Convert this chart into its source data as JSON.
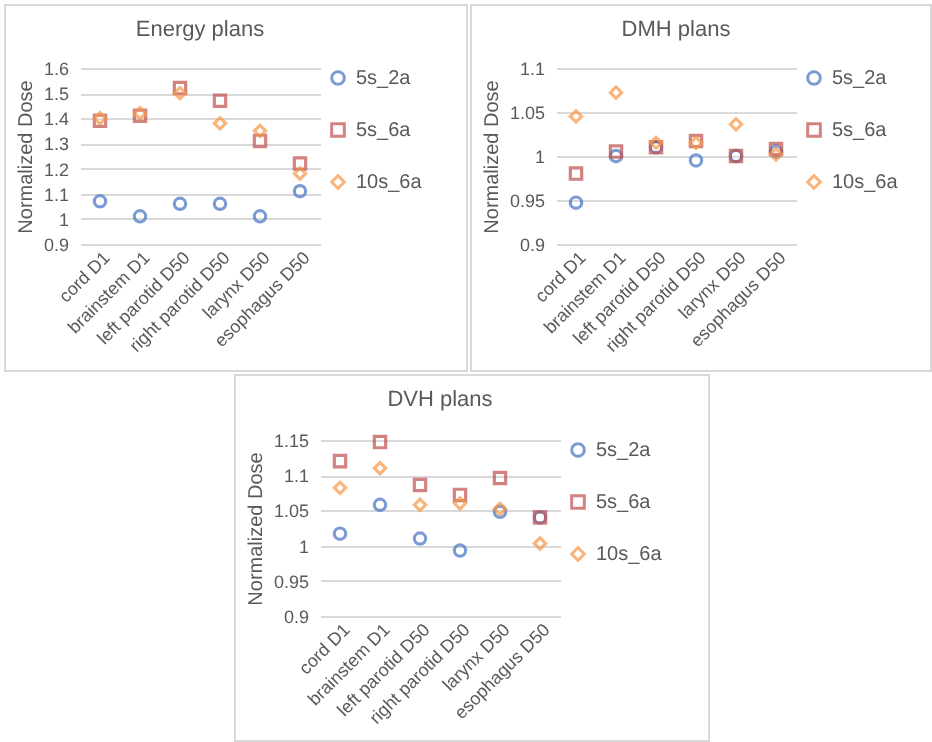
{
  "chart_data": [
    {
      "type": "scatter",
      "title": "Energy plans",
      "ylabel": "Normalized Dose",
      "categories": [
        "cord D1",
        "brainstem D1",
        "left parotid D50",
        "right parotid D50",
        "larynx D50",
        "esophagus D50"
      ],
      "series": [
        {
          "name": "5s_2a",
          "color": "#4472c4",
          "marker": "circle",
          "values": [
            1.07,
            1.01,
            1.06,
            1.06,
            1.01,
            1.11
          ]
        },
        {
          "name": "5s_6a",
          "color": "#c0504d",
          "marker": "square",
          "values": [
            1.39,
            1.41,
            1.52,
            1.47,
            1.31,
            1.22
          ]
        },
        {
          "name": "10s_6a",
          "color": "#f79646",
          "marker": "diamond",
          "values": [
            1.4,
            1.42,
            1.5,
            1.38,
            1.35,
            1.18
          ]
        }
      ],
      "ylim": [
        0.9,
        1.6
      ],
      "yticks": [
        0.9,
        1,
        1.1,
        1.2,
        1.3,
        1.4,
        1.5,
        1.6
      ],
      "grid": "y",
      "legend": "right"
    },
    {
      "type": "scatter",
      "title": "DMH plans",
      "ylabel": "Normalized Dose",
      "categories": [
        "cord D1",
        "brainstem D1",
        "left parotid D50",
        "right parotid D50",
        "larynx D50",
        "esophagus D50"
      ],
      "series": [
        {
          "name": "5s_2a",
          "color": "#4472c4",
          "marker": "circle",
          "values": [
            0.947,
            1.0,
            1.01,
            0.995,
            1.0,
            1.005
          ]
        },
        {
          "name": "5s_6a",
          "color": "#c0504d",
          "marker": "square",
          "values": [
            0.98,
            1.005,
            1.01,
            1.017,
            1.0,
            1.008
          ]
        },
        {
          "name": "10s_6a",
          "color": "#f79646",
          "marker": "diamond",
          "values": [
            1.045,
            1.072,
            1.015,
            1.015,
            1.036,
            1.002
          ]
        }
      ],
      "ylim": [
        0.9,
        1.1
      ],
      "yticks": [
        0.9,
        0.95,
        1,
        1.05,
        1.1
      ],
      "grid": "y",
      "legend": "right"
    },
    {
      "type": "scatter",
      "title": "DVH plans",
      "ylabel": "Normalized Dose",
      "categories": [
        "cord D1",
        "brainstem D1",
        "left parotid D50",
        "right parotid D50",
        "larynx D50",
        "esophagus D50"
      ],
      "series": [
        {
          "name": "5s_2a",
          "color": "#4472c4",
          "marker": "circle",
          "values": [
            1.017,
            1.058,
            1.01,
            0.993,
            1.048,
            1.04
          ]
        },
        {
          "name": "5s_6a",
          "color": "#c0504d",
          "marker": "square",
          "values": [
            1.12,
            1.147,
            1.086,
            1.072,
            1.096,
            1.04
          ]
        },
        {
          "name": "10s_6a",
          "color": "#f79646",
          "marker": "diamond",
          "values": [
            1.082,
            1.11,
            1.058,
            1.06,
            1.052,
            1.003
          ]
        }
      ],
      "ylim": [
        0.9,
        1.15
      ],
      "yticks": [
        0.9,
        0.95,
        1,
        1.05,
        1.1,
        1.15
      ],
      "grid": "y",
      "legend": "right"
    }
  ]
}
